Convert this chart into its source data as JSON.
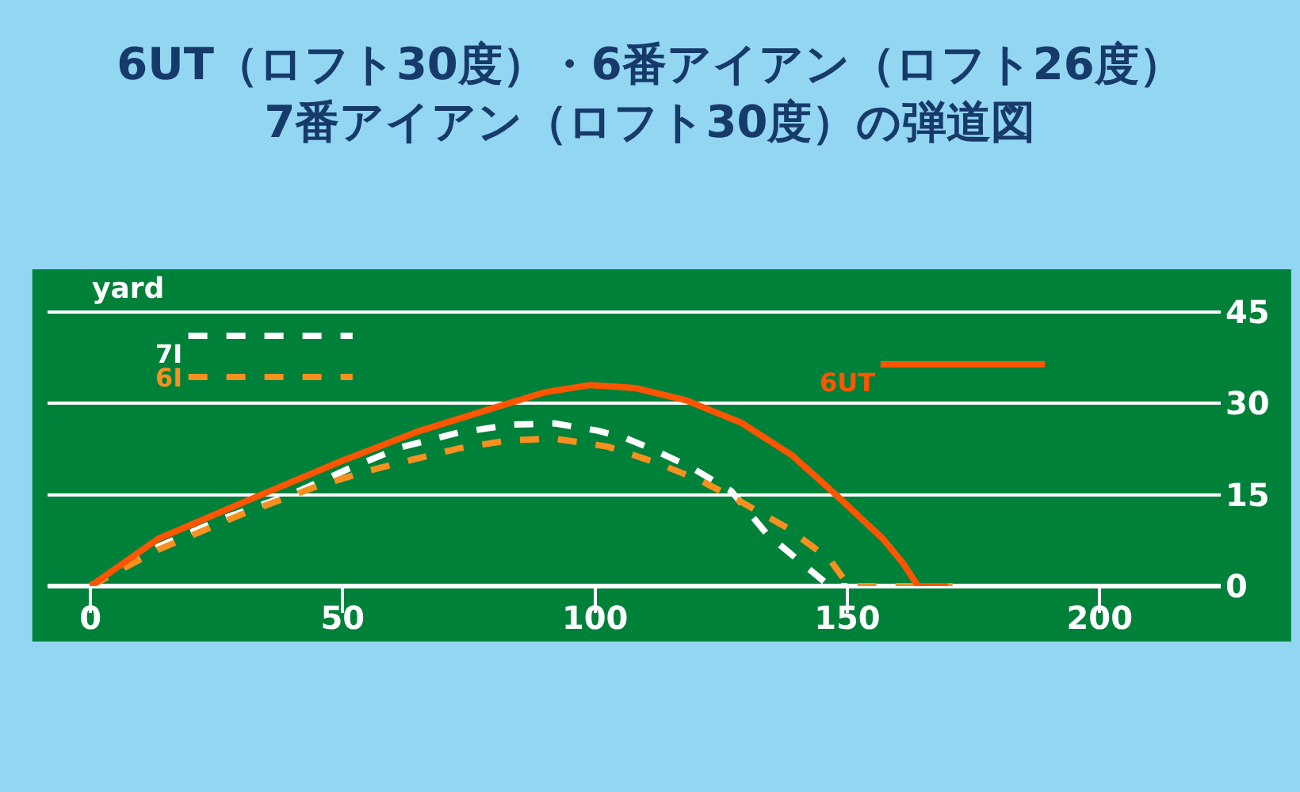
{
  "chart_data": {
    "type": "line",
    "title": "6UT（ロフト30度）・6番アイアン（ロフト26度）\n7番アイアン（ロフト30度）の弾道図",
    "ylabel": "yard",
    "xlim": [
      -8.5,
      224
    ],
    "xticks": [
      0,
      50,
      100,
      150,
      200
    ],
    "ylim": [
      0,
      52
    ],
    "yticks": [
      0,
      15,
      30,
      45
    ],
    "grid": "y",
    "legend": "top",
    "marker": "none",
    "series": [
      {
        "name": "7I",
        "color": "#ffffff",
        "line_style": "dashed",
        "x": [
          0,
          13.5,
          26,
          39.6,
          51,
          61.6,
          73,
          83.6,
          92,
          100.6,
          106,
          111,
          119,
          127,
          134,
          141.5,
          146.5,
          150
        ],
        "values": [
          0,
          6.5,
          11,
          15,
          19.2,
          22.8,
          25.2,
          26.5,
          26.7,
          25.5,
          24.3,
          22.6,
          19.5,
          15.6,
          8.6,
          3.4,
          0,
          0
        ]
      },
      {
        "name": "6I",
        "color": "#f7901e",
        "line_style": "dashed",
        "x": [
          0,
          13.5,
          30,
          45,
          55,
          64,
          73,
          82.7,
          92,
          102.5,
          112,
          121,
          129,
          138,
          146.5,
          150.3,
          171
        ],
        "values": [
          0,
          6,
          11.8,
          16.4,
          18.9,
          20.8,
          22.6,
          23.9,
          24.2,
          22.9,
          20.3,
          17.3,
          13.8,
          9.6,
          4.4,
          0,
          0
        ]
      },
      {
        "name": "6UT",
        "color": "#ff5500",
        "line_style": "solid",
        "x": [
          0,
          13.5,
          33.3,
          50,
          65,
          80.5,
          90,
          99,
          108,
          118,
          129,
          139,
          148,
          157,
          161,
          164,
          170
        ],
        "values": [
          0,
          7.8,
          14.8,
          20.6,
          25.4,
          29.4,
          31.8,
          33,
          32.5,
          30.5,
          26.8,
          21.5,
          14.8,
          7.8,
          3.8,
          0,
          0
        ]
      }
    ]
  }
}
